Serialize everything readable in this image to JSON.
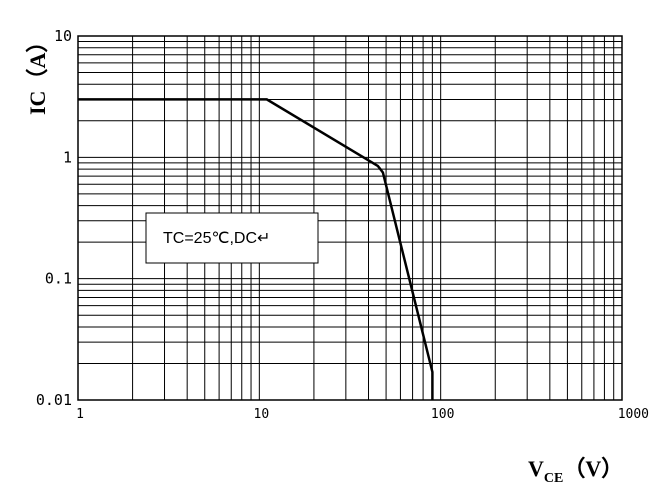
{
  "chart_data": {
    "type": "line",
    "xscale": "log",
    "yscale": "log",
    "xlim": [
      1,
      1000
    ],
    "ylim": [
      0.01,
      10
    ],
    "grid": true,
    "x_ticks": [
      "1",
      "10",
      "100",
      "1000"
    ],
    "y_ticks": [
      "0.01",
      "0.1",
      "1",
      "10"
    ],
    "ylabel": "IC（A）",
    "xlabel": {
      "main": "V",
      "sub": "CE",
      "unit": "（V）"
    },
    "annotation": "TC=25℃,DC↵",
    "series": [
      {
        "x": [
          1,
          11,
          45,
          48,
          90,
          90
        ],
        "y": [
          3,
          3,
          0.85,
          0.75,
          0.017,
          0.01
        ]
      }
    ]
  }
}
